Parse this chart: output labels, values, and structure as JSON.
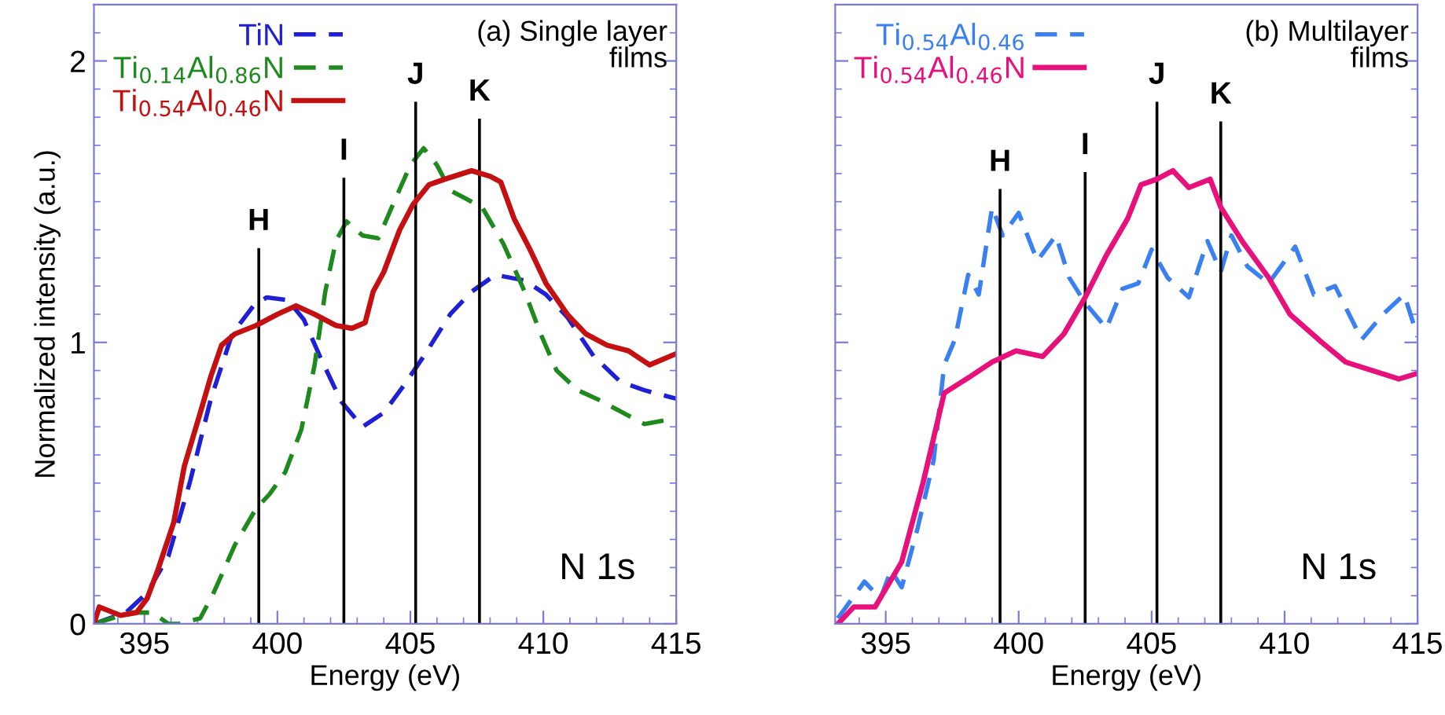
{
  "chart_data": [
    {
      "type": "line",
      "title": "(a) Single layer\nfilms",
      "xlabel": "Energy (eV)",
      "ylabel": "Normalized intensity (a.u.)",
      "xlim": [
        393.1,
        415
      ],
      "ylim": [
        0,
        2.2
      ],
      "xticks": [
        395,
        400,
        405,
        410,
        415
      ],
      "yticks": [
        0,
        1,
        2
      ],
      "legend": "top left",
      "grid": false,
      "series": [
        {
          "name": "TiN",
          "color": "#1f1fd6",
          "line_style": "dashed",
          "x": [
            393.1,
            394.3,
            395.1,
            395.9,
            396.7,
            397.5,
            398.3,
            399.1,
            399.6,
            400.4,
            401.0,
            401.6,
            402.4,
            403.2,
            404.0,
            404.7,
            405.5,
            406.5,
            407.3,
            408.2,
            409.3,
            410.1,
            410.9,
            411.9,
            412.9,
            413.8,
            415
          ],
          "values": [
            0.0,
            0.04,
            0.11,
            0.24,
            0.5,
            0.8,
            1.03,
            1.13,
            1.16,
            1.15,
            1.08,
            0.95,
            0.79,
            0.7,
            0.75,
            0.84,
            0.95,
            1.1,
            1.18,
            1.24,
            1.22,
            1.17,
            1.09,
            0.95,
            0.86,
            0.83,
            0.8
          ]
        },
        {
          "name": "Ti$_{0.14}$Al$_{0.86}$N",
          "color": "#1e8a1e",
          "line_style": "dashed",
          "x": [
            393.1,
            394.5,
            395.3,
            395.9,
            396.3,
            397.1,
            397.6,
            398.4,
            399.2,
            399.7,
            400.3,
            400.9,
            401.4,
            401.8,
            402.2,
            402.6,
            403.2,
            403.8,
            404.3,
            405.0,
            405.5,
            406.0,
            406.5,
            407.1,
            407.7,
            408.5,
            409.3,
            409.9,
            410.5,
            411.3,
            412.0,
            412.8,
            413.8,
            414.4,
            415
          ],
          "values": [
            0.0,
            0.04,
            0.04,
            0.0,
            0.0,
            0.02,
            0.11,
            0.28,
            0.41,
            0.46,
            0.54,
            0.69,
            0.92,
            1.18,
            1.36,
            1.43,
            1.38,
            1.37,
            1.48,
            1.63,
            1.69,
            1.63,
            1.54,
            1.51,
            1.48,
            1.35,
            1.18,
            1.03,
            0.9,
            0.83,
            0.8,
            0.76,
            0.71,
            0.72,
            0.73
          ]
        },
        {
          "color": "#000000",
          "line_style": "solid",
          "x": [
            399.3,
            399.3
          ],
          "values": [
            0,
            1.33
          ]
        },
        {
          "color": "#000000",
          "line_style": "solid",
          "x": [
            402.5,
            402.5
          ],
          "values": [
            0,
            1.58
          ]
        },
        {
          "color": "#000000",
          "line_style": "solid",
          "x": [
            405.2,
            405.2
          ],
          "values": [
            0,
            1.85
          ]
        },
        {
          "color": "#000000",
          "line_style": "solid",
          "x": [
            407.6,
            407.6
          ],
          "values": [
            0,
            1.79
          ]
        },
        {
          "name": "Ti$_{0.54}$Al$_{0.46}$N",
          "color": "#c41010",
          "line_style": "solid",
          "x": [
            393.1,
            393.3,
            394.1,
            394.7,
            395.1,
            395.5,
            396.1,
            396.5,
            397.1,
            397.5,
            397.9,
            398.4,
            399.2,
            400.0,
            400.7,
            401.4,
            402.2,
            402.8,
            403.3,
            403.6,
            404.0,
            404.6,
            405.1,
            405.7,
            406.3,
            407.3,
            408.0,
            408.4,
            408.9,
            409.5,
            410.1,
            410.9,
            411.6,
            412.4,
            413.2,
            414.0,
            415
          ],
          "values": [
            0.0,
            0.06,
            0.03,
            0.04,
            0.09,
            0.19,
            0.36,
            0.56,
            0.75,
            0.88,
            0.99,
            1.03,
            1.06,
            1.1,
            1.13,
            1.1,
            1.06,
            1.05,
            1.07,
            1.18,
            1.25,
            1.4,
            1.49,
            1.56,
            1.58,
            1.61,
            1.59,
            1.57,
            1.44,
            1.33,
            1.21,
            1.1,
            1.03,
            0.99,
            0.97,
            0.92,
            0.96
          ]
        }
      ],
      "annotations": [
        {
          "text": "H",
          "x": 399.3,
          "y": 1.33
        },
        {
          "text": "I",
          "x": 402.5,
          "y": 1.58
        },
        {
          "text": "J",
          "x": 405.2,
          "y": 1.85
        },
        {
          "text": "K",
          "x": 407.6,
          "y": 1.79
        },
        "N 1s"
      ]
    },
    {
      "type": "line",
      "title": "(b) Multilayer\nfilms",
      "xlabel": "Energy (eV)",
      "xlim": [
        393.1,
        415
      ],
      "ylim": [
        0,
        2.2
      ],
      "xticks": [
        395,
        400,
        405,
        410,
        415
      ],
      "yticks": [
        0,
        1,
        2
      ],
      "tick_labels": "x",
      "legend": "top left",
      "grid": false,
      "series": [
        {
          "name": "Ti$_{0.54}$Al$_{0.46}$",
          "color": "#3a80f0",
          "line_style": "dashed",
          "x": [
            393.2,
            394.2,
            394.8,
            395.2,
            395.6,
            396.2,
            396.8,
            397.2,
            397.6,
            398.1,
            398.5,
            399.0,
            399.4,
            400.0,
            400.7,
            401.4,
            401.9,
            402.5,
            403.3,
            403.9,
            404.5,
            405.0,
            405.6,
            406.4,
            407.1,
            407.6,
            408.0,
            408.6,
            409.4,
            410.4,
            411.1,
            411.9,
            412.9,
            413.7,
            414.5,
            415
          ],
          "values": [
            0.02,
            0.15,
            0.09,
            0.19,
            0.13,
            0.34,
            0.58,
            0.92,
            1.01,
            1.24,
            1.17,
            1.48,
            1.38,
            1.46,
            1.29,
            1.38,
            1.23,
            1.14,
            1.05,
            1.19,
            1.21,
            1.33,
            1.23,
            1.16,
            1.36,
            1.25,
            1.38,
            1.27,
            1.21,
            1.34,
            1.17,
            1.2,
            1.01,
            1.1,
            1.17,
            1.02
          ]
        },
        {
          "color": "#000000",
          "line_style": "solid",
          "x": [
            399.3,
            399.3
          ],
          "values": [
            0,
            1.54
          ]
        },
        {
          "color": "#000000",
          "line_style": "solid",
          "x": [
            402.5,
            402.5
          ],
          "values": [
            0,
            1.6
          ]
        },
        {
          "color": "#000000",
          "line_style": "solid",
          "x": [
            405.2,
            405.2
          ],
          "values": [
            0,
            1.85
          ]
        },
        {
          "color": "#000000",
          "line_style": "solid",
          "x": [
            407.6,
            407.6
          ],
          "values": [
            0,
            1.78
          ]
        },
        {
          "name": "Ti$_{0.54}$Al$_{0.46}$N",
          "color": "#e8107a",
          "line_style": "solid",
          "x": [
            393.2,
            393.8,
            394.6,
            395.6,
            396.4,
            397.2,
            398.2,
            399.0,
            399.9,
            400.9,
            401.7,
            402.5,
            403.3,
            404.1,
            404.6,
            405.2,
            405.8,
            406.4,
            407.2,
            407.6,
            408.4,
            409.4,
            410.2,
            411.4,
            412.3,
            413.3,
            414.3,
            415
          ],
          "values": [
            0.0,
            0.06,
            0.06,
            0.22,
            0.5,
            0.82,
            0.88,
            0.93,
            0.97,
            0.95,
            1.03,
            1.16,
            1.31,
            1.44,
            1.56,
            1.58,
            1.61,
            1.55,
            1.58,
            1.48,
            1.36,
            1.23,
            1.1,
            1.0,
            0.93,
            0.9,
            0.87,
            0.89
          ]
        }
      ],
      "annotations": [
        {
          "text": "H",
          "x": 399.3,
          "y": 1.54
        },
        {
          "text": "I",
          "x": 402.5,
          "y": 1.6
        },
        {
          "text": "J",
          "x": 405.2,
          "y": 1.85
        },
        {
          "text": "K",
          "x": 407.6,
          "y": 1.78
        },
        "N 1s"
      ]
    }
  ]
}
